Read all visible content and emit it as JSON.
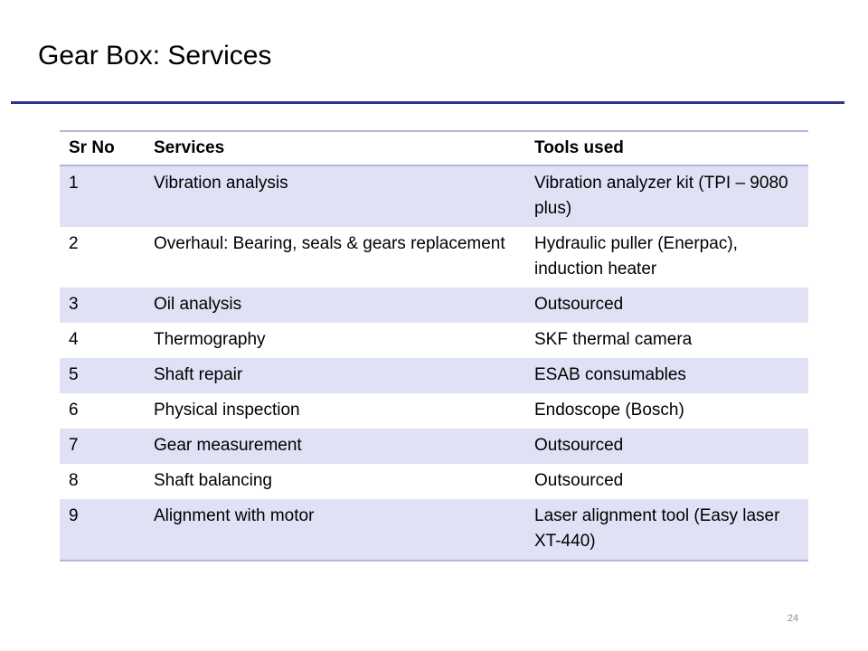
{
  "slide": {
    "title": "Gear Box: Services",
    "page_number": "24"
  },
  "table": {
    "headers": [
      "Sr No",
      "Services",
      "Tools used"
    ],
    "rows": [
      [
        "1",
        "Vibration analysis",
        "Vibration analyzer kit (TPI – 9080 plus)"
      ],
      [
        "2",
        "Overhaul: Bearing, seals & gears replacement",
        "Hydraulic puller (Enerpac), induction heater"
      ],
      [
        "3",
        "Oil analysis",
        "Outsourced"
      ],
      [
        "4",
        "Thermography",
        "SKF thermal camera"
      ],
      [
        "5",
        "Shaft repair",
        "ESAB consumables"
      ],
      [
        "6",
        "Physical inspection",
        "Endoscope (Bosch)"
      ],
      [
        "7",
        "Gear measurement",
        "Outsourced"
      ],
      [
        "8",
        "Shaft balancing",
        "Outsourced"
      ],
      [
        "9",
        "Alignment with motor",
        "Laser alignment tool (Easy laser XT-440)"
      ]
    ]
  },
  "colors": {
    "title_rule": "#2e3192",
    "table_border": "#b4b4e6",
    "row_shade": "#e1e1f6"
  }
}
